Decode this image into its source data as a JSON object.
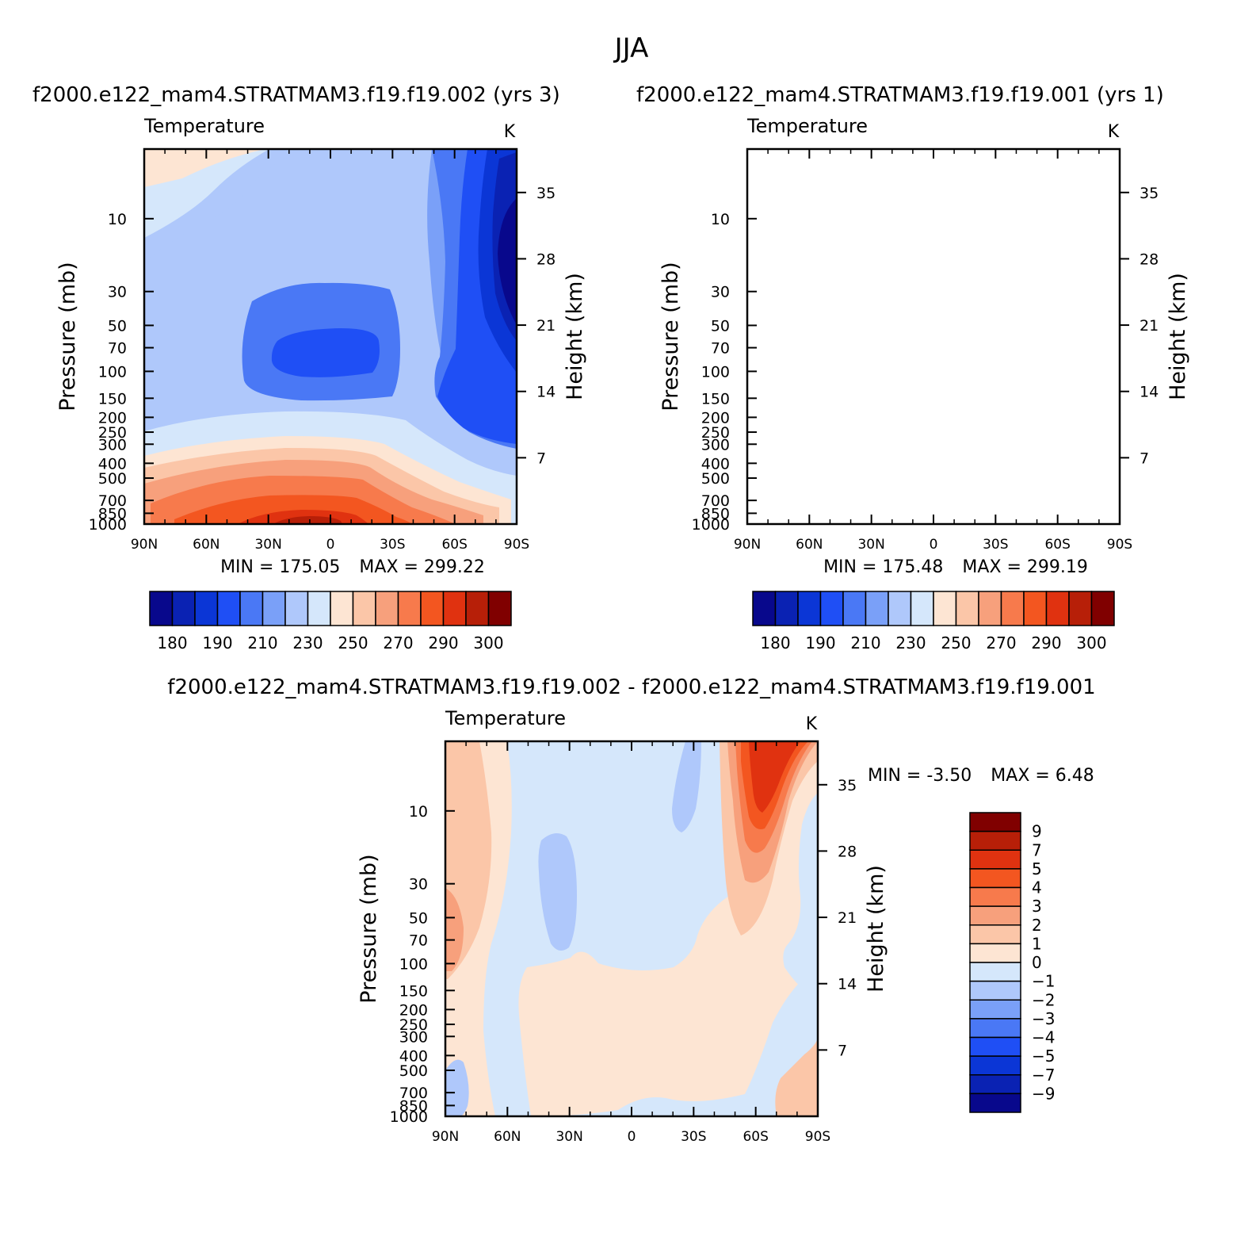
{
  "title": "JJA",
  "chart_data": [
    {
      "type": "contour",
      "panel": "top-left",
      "title": "f2000.e122_mam4.STRATMAM3.f19.f19.002 (yrs 3)",
      "variable": "Temperature",
      "units": "K",
      "ylabel": "Pressure (mb)",
      "ylabel_right": "Height (km)",
      "x_ticks": [
        "90N",
        "60N",
        "30N",
        "0",
        "30S",
        "60S",
        "90S"
      ],
      "y_ticks": [
        "10",
        "30",
        "50",
        "70",
        "100",
        "150",
        "200",
        "250",
        "300",
        "400",
        "500",
        "700",
        "850",
        "1000"
      ],
      "y_values": [
        10,
        30,
        50,
        70,
        100,
        150,
        200,
        250,
        300,
        400,
        500,
        700,
        850,
        1000
      ],
      "height_ticks": [
        "35",
        "28",
        "21",
        "14",
        "7"
      ],
      "height_values_km": [
        35,
        28,
        21,
        14,
        7
      ],
      "ylim": [
        3.5,
        1000
      ],
      "min_label": "MIN = 175.05",
      "max_label": "MAX = 299.22",
      "min": 175.05,
      "max": 299.22,
      "contour_levels": [
        180,
        185,
        190,
        200,
        210,
        220,
        230,
        240,
        250,
        260,
        270,
        280,
        290,
        295,
        300
      ],
      "colorbar_labels": [
        "180",
        "190",
        "210",
        "230",
        "250",
        "270",
        "290",
        "300"
      ]
    },
    {
      "type": "contour",
      "panel": "top-right",
      "title": "f2000.e122_mam4.STRATMAM3.f19.f19.001 (yrs 1)",
      "variable": "Temperature",
      "units": "K",
      "ylabel": "Pressure (mb)",
      "ylabel_right": "Height (km)",
      "x_ticks": [
        "90N",
        "60N",
        "30N",
        "0",
        "30S",
        "60S",
        "90S"
      ],
      "y_ticks": [
        "10",
        "30",
        "50",
        "70",
        "100",
        "150",
        "200",
        "250",
        "300",
        "400",
        "500",
        "700",
        "850",
        "1000"
      ],
      "y_values": [
        10,
        30,
        50,
        70,
        100,
        150,
        200,
        250,
        300,
        400,
        500,
        700,
        850,
        1000
      ],
      "height_ticks": [
        "35",
        "28",
        "21",
        "14",
        "7"
      ],
      "height_values_km": [
        35,
        28,
        21,
        14,
        7
      ],
      "ylim": [
        3.5,
        1000
      ],
      "min_label": "MIN = 175.48",
      "max_label": "MAX = 299.19",
      "min": 175.48,
      "max": 299.19,
      "contour_levels": [
        180,
        185,
        190,
        200,
        210,
        220,
        230,
        240,
        250,
        260,
        270,
        280,
        290,
        295,
        300
      ],
      "colorbar_labels": [
        "180",
        "190",
        "210",
        "230",
        "250",
        "270",
        "290",
        "300"
      ]
    },
    {
      "type": "contour",
      "panel": "bottom",
      "title": "f2000.e122_mam4.STRATMAM3.f19.f19.002 - f2000.e122_mam4.STRATMAM3.f19.f19.001",
      "variable": "Temperature",
      "units": "K",
      "ylabel": "Pressure (mb)",
      "ylabel_right": "Height (km)",
      "x_ticks": [
        "90N",
        "60N",
        "30N",
        "0",
        "30S",
        "60S",
        "90S"
      ],
      "y_ticks": [
        "10",
        "30",
        "50",
        "70",
        "100",
        "150",
        "200",
        "250",
        "300",
        "400",
        "500",
        "700",
        "850",
        "1000"
      ],
      "y_values": [
        10,
        30,
        50,
        70,
        100,
        150,
        200,
        250,
        300,
        400,
        500,
        700,
        850,
        1000
      ],
      "height_ticks": [
        "35",
        "28",
        "21",
        "14",
        "7"
      ],
      "height_values_km": [
        35,
        28,
        21,
        14,
        7
      ],
      "ylim": [
        3.5,
        1000
      ],
      "min_label": "MIN = -3.50",
      "max_label": "MAX = 6.48",
      "min": -3.5,
      "max": 6.48,
      "contour_levels": [
        -9,
        -7,
        -5,
        -4,
        -3,
        -2,
        -1,
        0,
        1,
        2,
        3,
        4,
        5,
        7,
        9
      ],
      "colorbar_labels": [
        "9",
        "7",
        "5",
        "4",
        "3",
        "2",
        "1",
        "0",
        "-1",
        "-2",
        "-3",
        "-4",
        "-5",
        "-7",
        "-9"
      ]
    }
  ],
  "palettes": {
    "temperature": [
      "#08088c",
      "#0a22b3",
      "#0b36d6",
      "#1f4ff5",
      "#4a78f5",
      "#7aa0f8",
      "#afc8fb",
      "#d5e7fb",
      "#fde5d3",
      "#fbc6a8",
      "#f7a07c",
      "#f77a4c",
      "#f35620",
      "#e03210",
      "#b71f08",
      "#800000"
    ],
    "difference": [
      "#800000",
      "#b71f08",
      "#e03210",
      "#f35620",
      "#f77a4c",
      "#f7a07c",
      "#fbc6a8",
      "#fde5d3",
      "#d5e7fb",
      "#afc8fb",
      "#7aa0f8",
      "#4a78f5",
      "#1f4ff5",
      "#0b36d6",
      "#0a22b3",
      "#08088c"
    ]
  }
}
